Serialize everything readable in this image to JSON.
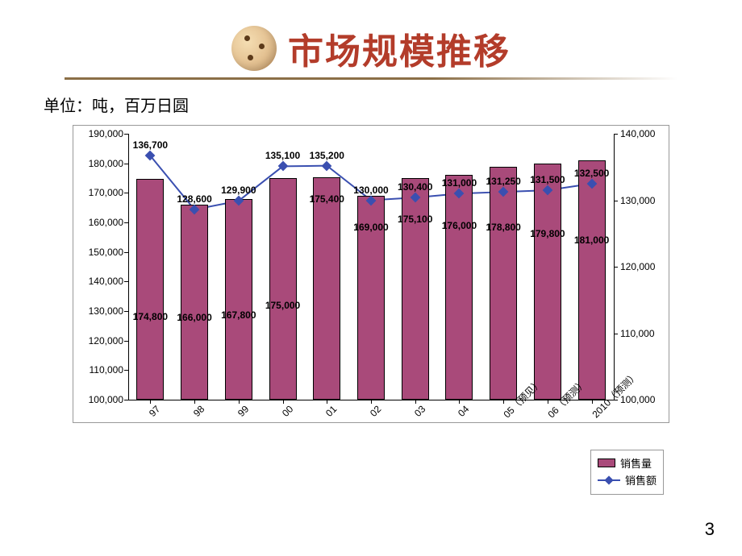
{
  "title": "市场规模推移",
  "unit_label": "单位：吨，百万日圆",
  "page_number": "3",
  "legend": {
    "series1": "销售量",
    "series2": "销售额"
  },
  "chart": {
    "type": "bar+line",
    "background_color": "#ffffff",
    "plot_border_color": "#999999",
    "bar_color": "#a94a7a",
    "bar_border_color": "#000000",
    "line_color": "#3a4fb0",
    "marker_color": "#3a4fb0",
    "marker_style": "diamond",
    "marker_size": 9,
    "line_width": 2,
    "bar_width_ratio": 0.62,
    "label_fontsize": 12,
    "axis_fontsize": 12,
    "left_axis": {
      "min": 100000,
      "max": 190000,
      "step": 10000
    },
    "right_axis": {
      "min": 100000,
      "max": 140000,
      "step": 10000
    },
    "categories": [
      "97",
      "98",
      "99",
      "00",
      "01",
      "02",
      "03",
      "04",
      "05（预见）",
      "06（预测）",
      "2010（预测）"
    ],
    "bar_values": [
      174800,
      166000,
      167800,
      175000,
      175400,
      169000,
      175100,
      176000,
      178800,
      179800,
      181000
    ],
    "bar_value_labels": [
      "174,800",
      "166,000",
      "167,800",
      "175,000",
      "175,400",
      "169,000",
      "175,100",
      "176,000",
      "178,800",
      "179,800",
      "181,000"
    ],
    "line_values": [
      136700,
      128600,
      129900,
      135100,
      135200,
      130000,
      130400,
      131000,
      131250,
      131500,
      132500
    ],
    "line_value_labels": [
      "136,700",
      "128,600",
      "129,900",
      "135,100",
      "135,200",
      "130,000",
      "130,400",
      "131,000",
      "131,250",
      "131,500",
      "132,500"
    ],
    "bar_label_inside_from_index": 4
  }
}
